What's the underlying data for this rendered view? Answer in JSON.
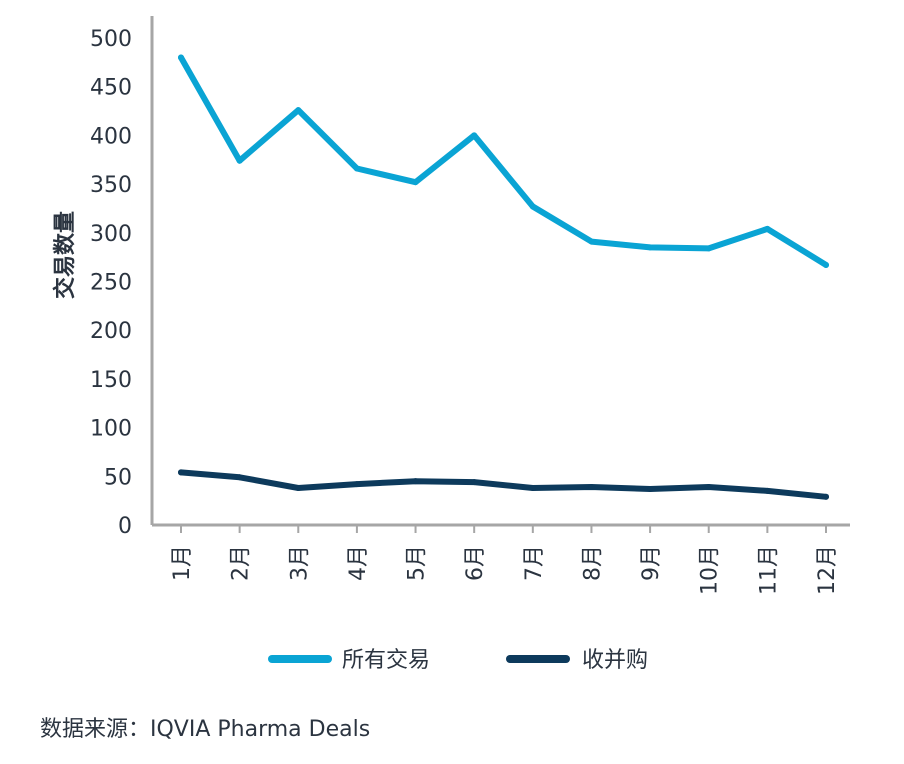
{
  "chart_data": {
    "type": "line",
    "categories": [
      "1月",
      "2月",
      "3月",
      "4月",
      "5月",
      "6月",
      "7月",
      "8月",
      "9月",
      "10月",
      "11月",
      "12月"
    ],
    "series": [
      {
        "name": "所有交易",
        "values": [
          480,
          374,
          426,
          366,
          352,
          400,
          327,
          291,
          285,
          284,
          304,
          267
        ],
        "color": "#0aa4d4"
      },
      {
        "name": "收并购",
        "values": [
          54,
          49,
          38,
          42,
          45,
          44,
          38,
          39,
          37,
          39,
          35,
          29
        ],
        "color": "#0d3a5c"
      }
    ],
    "ylabel": "交易数量",
    "xlabel": "",
    "ylim": [
      0,
      500
    ],
    "yticks": [
      0,
      50,
      100,
      150,
      200,
      250,
      300,
      350,
      400,
      450,
      500
    ],
    "grid": false,
    "legend_position": "bottom-center",
    "axis_color": "#a6a6a6",
    "text_color": "#2b3440"
  },
  "source_text": "数据来源：IQVIA Pharma Deals"
}
